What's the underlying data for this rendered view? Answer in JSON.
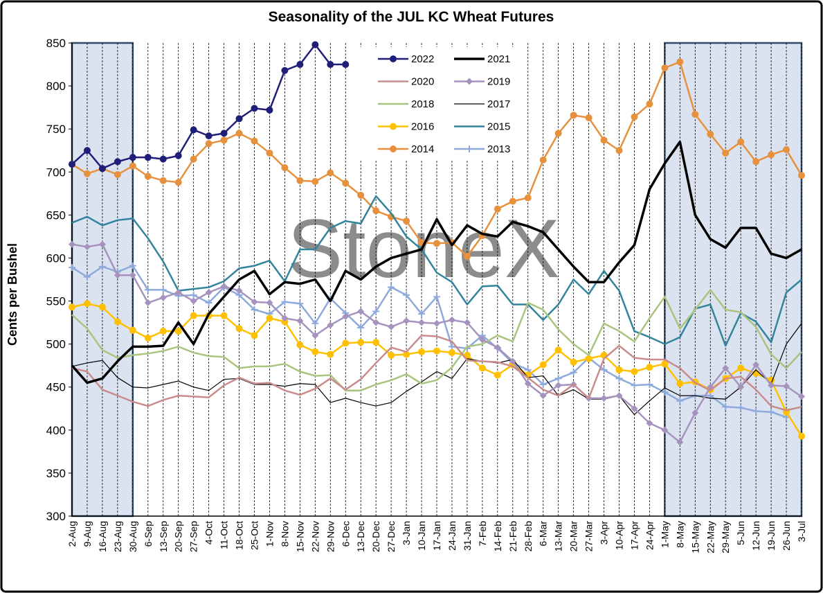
{
  "chart_data": {
    "type": "line",
    "title": "Seasonality of the JUL KC Wheat Futures",
    "y_label": "Cents per Bushel",
    "watermark": "StoneX",
    "categories": [
      "2-Aug",
      "9-Aug",
      "16-Aug",
      "23-Aug",
      "30-Aug",
      "6-Sep",
      "13-Sep",
      "20-Sep",
      "27-Sep",
      "4-Oct",
      "11-Oct",
      "18-Oct",
      "25-Oct",
      "1-Nov",
      "8-Nov",
      "15-Nov",
      "22-Nov",
      "29-Nov",
      "6-Dec",
      "13-Dec",
      "20-Dec",
      "27-Dec",
      "3-Jan",
      "10-Jan",
      "17-Jan",
      "24-Jan",
      "31-Jan",
      "7-Feb",
      "14-Feb",
      "21-Feb",
      "28-Feb",
      "6-Mar",
      "13-Mar",
      "20-Mar",
      "27-Mar",
      "3-Apr",
      "10-Apr",
      "17-Apr",
      "24-Apr",
      "1-May",
      "8-May",
      "15-May",
      "22-May",
      "29-May",
      "5-Jun",
      "12-Jun",
      "19-Jun",
      "26-Jun",
      "3-Jul"
    ],
    "ylim": [
      300,
      850
    ],
    "yticks": [
      300,
      350,
      400,
      450,
      500,
      550,
      600,
      650,
      700,
      750,
      800,
      850
    ],
    "series": [
      {
        "name": "2022",
        "color": "#1f1f7a",
        "marker": "circle",
        "values": [
          709,
          725,
          704,
          712,
          717,
          717,
          715,
          719,
          749,
          742,
          745,
          762,
          774,
          772,
          818,
          825,
          848,
          825,
          825,
          null,
          null,
          null,
          null,
          null,
          null,
          null,
          null,
          null,
          null,
          null,
          null,
          null,
          null,
          null,
          null,
          null,
          null,
          null,
          null,
          null,
          null,
          null,
          null,
          null,
          null,
          null,
          null,
          null,
          null
        ]
      },
      {
        "name": "2021",
        "color": "#000000",
        "marker": "none",
        "values": [
          475,
          455,
          460,
          480,
          497,
          497,
          498,
          525,
          500,
          535,
          555,
          575,
          585,
          558,
          572,
          570,
          575,
          550,
          585,
          575,
          590,
          600,
          605,
          610,
          645,
          615,
          638,
          628,
          625,
          642,
          637,
          630,
          610,
          590,
          572,
          572,
          595,
          615,
          680,
          710,
          735,
          650,
          622,
          612,
          635,
          635,
          605,
          600,
          610
        ]
      },
      {
        "name": "2020",
        "color": "#c98b8b",
        "marker": "none",
        "values": [
          472,
          468,
          447,
          440,
          433,
          428,
          435,
          440,
          439,
          438,
          452,
          461,
          454,
          455,
          446,
          441,
          448,
          460,
          447,
          459,
          478,
          496,
          491,
          510,
          509,
          503,
          481,
          480,
          479,
          474,
          461,
          447,
          440,
          453,
          437,
          483,
          498,
          484,
          482,
          482,
          472,
          455,
          446,
          460,
          462,
          447,
          428,
          423,
          427
        ]
      },
      {
        "name": "2019",
        "color": "#a593be",
        "marker": "diamond",
        "values": [
          616,
          613,
          616,
          580,
          580,
          548,
          554,
          560,
          550,
          560,
          567,
          562,
          549,
          548,
          530,
          527,
          510,
          522,
          532,
          538,
          525,
          520,
          527,
          525,
          524,
          528,
          525,
          505,
          496,
          480,
          454,
          440,
          452,
          453,
          437,
          437,
          440,
          425,
          408,
          400,
          386,
          420,
          450,
          472,
          450,
          476,
          452,
          451,
          439
        ]
      },
      {
        "name": "2018",
        "color": "#a9c47f",
        "marker": "none",
        "values": [
          534,
          518,
          493,
          484,
          487,
          489,
          492,
          497,
          490,
          486,
          485,
          472,
          474,
          474,
          477,
          468,
          463,
          464,
          446,
          446,
          453,
          458,
          465,
          454,
          458,
          473,
          497,
          500,
          510,
          503,
          548,
          540,
          517,
          500,
          487,
          524,
          515,
          503,
          530,
          555,
          518,
          540,
          563,
          540,
          537,
          520,
          488,
          472,
          491
        ]
      },
      {
        "name": "2017",
        "color": "#000000",
        "marker": "none",
        "values": [
          474,
          478,
          481,
          461,
          450,
          449,
          453,
          457,
          450,
          446,
          459,
          460,
          453,
          453,
          451,
          454,
          453,
          432,
          437,
          432,
          428,
          432,
          445,
          456,
          468,
          460,
          483,
          480,
          478,
          482,
          461,
          463,
          440,
          447,
          436,
          436,
          440,
          418,
          434,
          449,
          440,
          440,
          437,
          436,
          450,
          470,
          454,
          500,
          524
        ]
      },
      {
        "name": "2016",
        "color": "#ffc000",
        "marker": "circle",
        "values": [
          543,
          547,
          543,
          526,
          516,
          507,
          515,
          515,
          533,
          533,
          533,
          518,
          510,
          530,
          526,
          499,
          491,
          488,
          501,
          502,
          502,
          487,
          488,
          491,
          492,
          490,
          487,
          472,
          464,
          476,
          464,
          476,
          493,
          479,
          483,
          487,
          470,
          468,
          473,
          477,
          454,
          456,
          447,
          460,
          472,
          466,
          458,
          421,
          393
        ]
      },
      {
        "name": "2015",
        "color": "#31849b",
        "marker": "none",
        "values": [
          641,
          648,
          638,
          644,
          646,
          623,
          596,
          562,
          564,
          566,
          573,
          588,
          591,
          597,
          573,
          610,
          610,
          635,
          643,
          640,
          672,
          652,
          625,
          610,
          583,
          572,
          546,
          567,
          568,
          546,
          546,
          528,
          546,
          575,
          558,
          585,
          562,
          515,
          508,
          500,
          508,
          541,
          546,
          498,
          536,
          526,
          502,
          560,
          575
        ]
      },
      {
        "name": "2014",
        "color": "#e6913d",
        "marker": "circle",
        "values": [
          709,
          698,
          704,
          697,
          707,
          695,
          690,
          688,
          715,
          733,
          737,
          745,
          736,
          722,
          705,
          690,
          689,
          699,
          687,
          673,
          655,
          648,
          643,
          618,
          617,
          618,
          602,
          626,
          657,
          666,
          670,
          714,
          745,
          766,
          763,
          737,
          725,
          764,
          779,
          821,
          828,
          767,
          744,
          722,
          735,
          712,
          720,
          726,
          696
        ]
      },
      {
        "name": "2013",
        "color": "#8ea9db",
        "marker": "plus",
        "values": [
          589,
          578,
          590,
          584,
          591,
          563,
          563,
          556,
          557,
          548,
          566,
          557,
          540,
          535,
          549,
          547,
          524,
          553,
          536,
          519,
          538,
          566,
          557,
          535,
          555,
          497,
          495,
          510,
          495,
          478,
          470,
          453,
          460,
          467,
          484,
          470,
          460,
          452,
          453,
          444,
          434,
          440,
          440,
          427,
          426,
          422,
          421,
          415,
          null
        ]
      }
    ]
  }
}
